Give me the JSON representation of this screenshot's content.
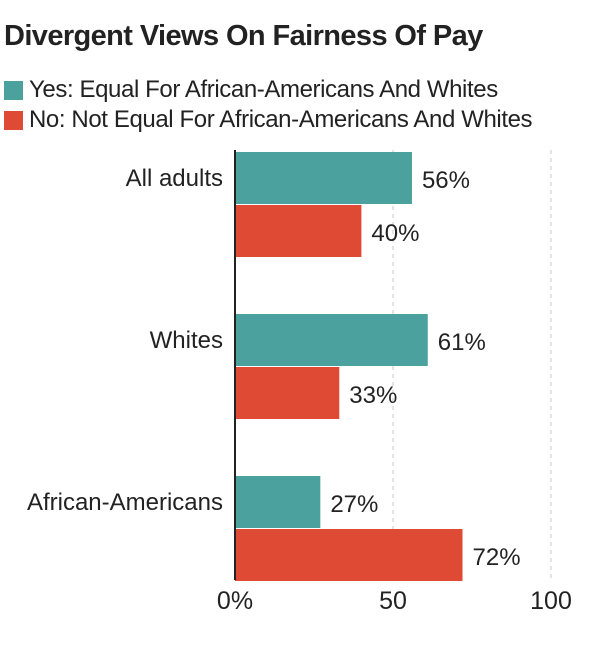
{
  "title": "Divergent Views On Fairness Of Pay",
  "legend": [
    {
      "label": "Yes: Equal For African-Americans And Whites",
      "color": "#4aa19e"
    },
    {
      "label": "No: Not Equal For African-Americans And Whites",
      "color": "#de4a33"
    }
  ],
  "chart_data": {
    "type": "bar",
    "orientation": "horizontal",
    "title": "Divergent Views On Fairness Of Pay",
    "categories": [
      "All adults",
      "Whites",
      "African-Americans"
    ],
    "series": [
      {
        "name": "Yes: Equal For African-Americans And Whites",
        "values": [
          56,
          61,
          27
        ],
        "labels": [
          "56%",
          "61%",
          "27%"
        ],
        "color": "#4aa19e"
      },
      {
        "name": "No: Not Equal For African-Americans And Whites",
        "values": [
          40,
          33,
          72
        ],
        "labels": [
          "40%",
          "33%",
          "72%"
        ],
        "color": "#de4a33"
      }
    ],
    "xlim": [
      0,
      100
    ],
    "xticks": [
      0,
      50,
      100
    ],
    "xtick_labels": [
      "0%",
      "50",
      "100"
    ],
    "grid": true,
    "legend_position": "top-left"
  }
}
